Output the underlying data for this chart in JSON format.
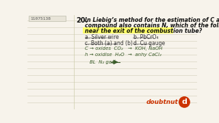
{
  "bg_color": "#f7f3eb",
  "line_color": "#d8d4c0",
  "id_text": "11075138",
  "id_box_color": "#e8e4d8",
  "q_num": "20.",
  "q_line1": "In Liebig’s method for the estimation of C and H, if the",
  "q_line2": "compound also contains N, which of the following is kept",
  "q_line3": "near the exit of the combustion tube?",
  "highlight_color": "#ffff66",
  "opt_a": "a. Silver wire",
  "opt_b": "b. PbCrO₄",
  "opt_c": "c. Both (a) and (b)",
  "opt_d": "d. Cu gauge",
  "note1a": "C → oxides  CO₂",
  "note1b": "→  KOH, NaOH",
  "note2a": "h → oxidise  H₂O",
  "note2b": "→  anhy CaCl₂",
  "note3": "ДΛ  N₂ gas",
  "note3_arrow": "→",
  "text_color": "#1a1a1a",
  "question_color": "#111111",
  "handwrite_color": "#3a5c2a",
  "opt_color": "#333333",
  "watermark_text": "doubtnut",
  "watermark_color": "#cc3300",
  "logo_bg": "#cc3300",
  "logo_text": "d"
}
